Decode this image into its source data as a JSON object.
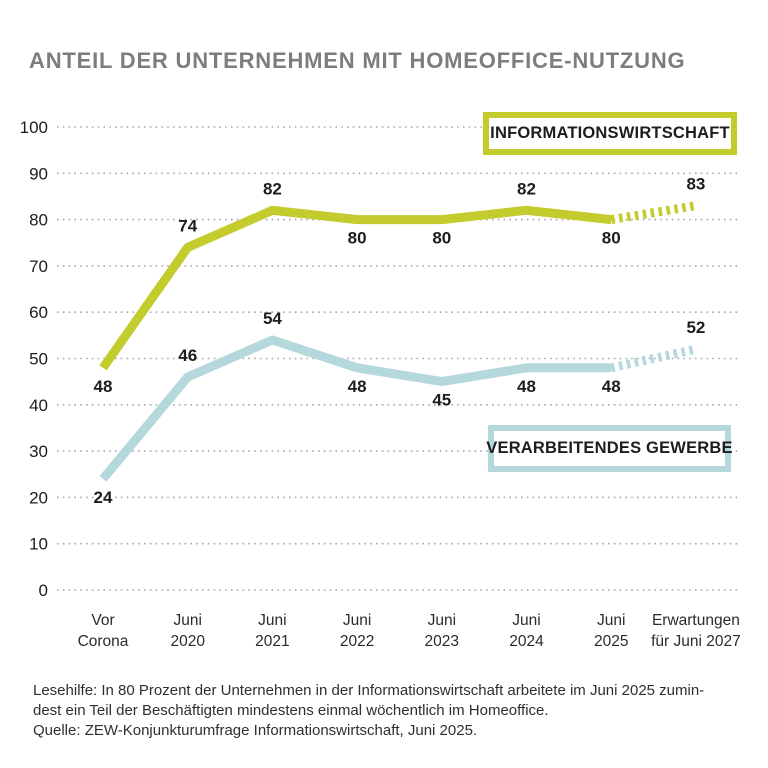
{
  "title": "ANTEIL DER UNTERNEHMEN MIT HOMEOFFICE-NUTZUNG",
  "footer": {
    "lines": [
      "Lesehilfe: In 80 Prozent der Unternehmen in der Informationswirtschaft arbeitete im Juni 2025 zumin-",
      "dest ein Teil der Beschäftigten mindestens einmal wöchentlich im Homeoffice.",
      "Quelle: ZEW-Konjunkturumfrage Informationswirtschaft, Juni 2025."
    ]
  },
  "chart_data": {
    "type": "line",
    "title": "ANTEIL DER UNTERNEHMEN MIT HOMEOFFICE-NUTZUNG",
    "categories": [
      [
        "Vor",
        "Corona"
      ],
      [
        "Juni",
        "2020"
      ],
      [
        "Juni",
        "2021"
      ],
      [
        "Juni",
        "2022"
      ],
      [
        "Juni",
        "2023"
      ],
      [
        "Juni",
        "2024"
      ],
      [
        "Juni",
        "2025"
      ],
      [
        "Erwartungen",
        "für Juni 2027"
      ]
    ],
    "yaxis": {
      "min": 0,
      "max": 100,
      "step": 10
    },
    "grid": true,
    "grid_style": "dotted",
    "series": [
      {
        "name": "INFORMATIONSWIRTSCHAFT",
        "color": "#c3cb2d",
        "values": [
          48,
          74,
          82,
          80,
          80,
          82,
          80,
          83
        ],
        "forecast_from_index": 6,
        "label_positions": [
          "below",
          "above",
          "above",
          "below",
          "below",
          "above",
          "below",
          "above"
        ],
        "legend_position": "top-right"
      },
      {
        "name": "VERARBEITENDES GEWERBE",
        "color": "#b5d8dd",
        "values": [
          24,
          46,
          54,
          48,
          45,
          48,
          48,
          52
        ],
        "forecast_from_index": 6,
        "label_positions": [
          "below",
          "above",
          "above",
          "below",
          "below",
          "below",
          "below",
          "above"
        ],
        "legend_position": "middle-right"
      }
    ],
    "colors": {
      "grid": "#a7a7a7",
      "label_text": "#1d1d1b",
      "title_gray": "#7c7e7e"
    }
  }
}
